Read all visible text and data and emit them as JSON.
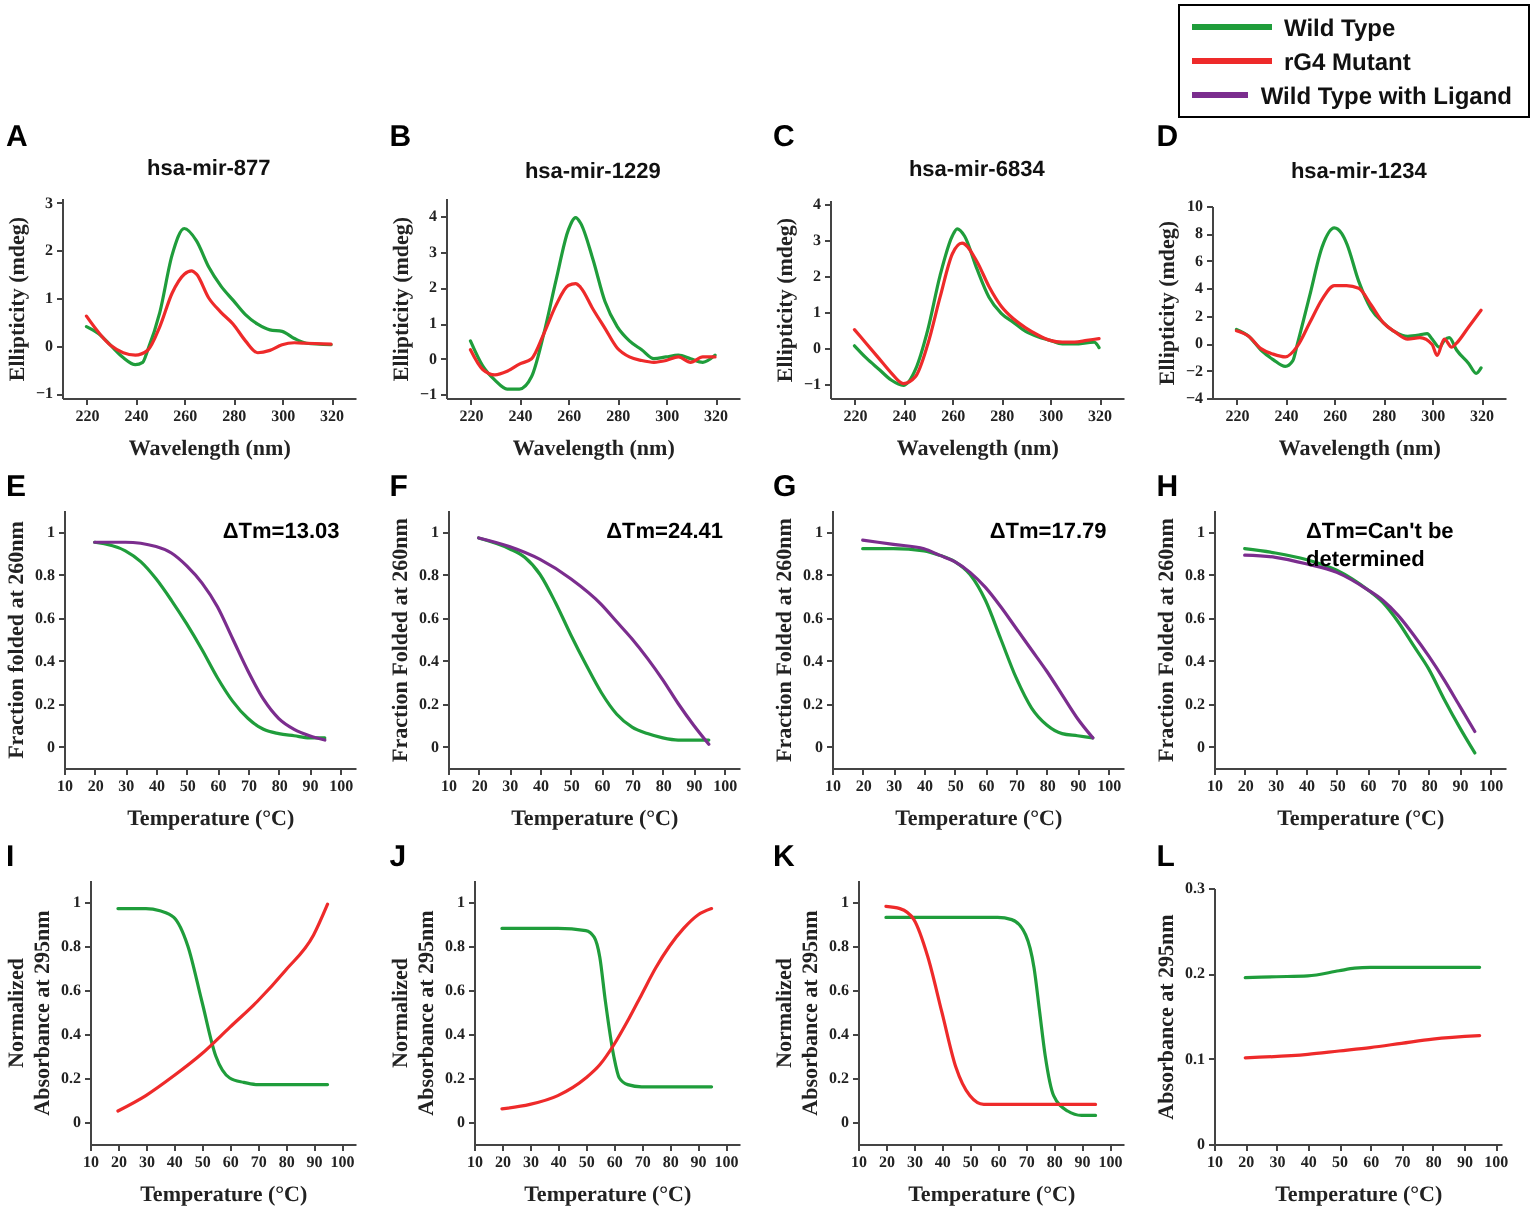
{
  "chart_data": [
    {
      "type": "line",
      "title": "A",
      "subtitle": "hsa-mir-877",
      "xlabel": "Wavelength (nm)",
      "ylabel": "Ellipticity (mdeg)",
      "xlim": [
        210,
        330
      ],
      "xticks": [
        220,
        240,
        260,
        280,
        300,
        320
      ],
      "ylim": [
        -1.1,
        3.1
      ],
      "yticks": [
        -1,
        0,
        1,
        2,
        3
      ],
      "grid": false,
      "legend": "top right",
      "series": [
        {
          "name": "Wild Type",
          "color": "#1f9d3b",
          "x": [
            220,
            225,
            230,
            235,
            240,
            243,
            245,
            250,
            255,
            260,
            265,
            270,
            275,
            280,
            285,
            290,
            295,
            300,
            305,
            310,
            320
          ],
          "values": [
            0.4,
            0.25,
            0.0,
            -0.25,
            -0.4,
            -0.35,
            -0.1,
            0.7,
            1.9,
            2.46,
            2.2,
            1.65,
            1.25,
            0.95,
            0.65,
            0.45,
            0.33,
            0.3,
            0.15,
            0.05,
            0.02
          ]
        },
        {
          "name": "rG4 Mutant",
          "color": "#ee2a2a",
          "x": [
            220,
            230,
            235,
            240,
            245,
            250,
            255,
            260,
            263,
            265,
            270,
            275,
            280,
            285,
            290,
            295,
            300,
            305,
            310,
            320
          ],
          "values": [
            0.62,
            0.0,
            -0.15,
            -0.2,
            -0.1,
            0.4,
            1.1,
            1.5,
            1.57,
            1.5,
            1.0,
            0.7,
            0.45,
            0.1,
            -0.15,
            -0.1,
            0.02,
            0.06,
            0.05,
            0.03
          ]
        }
      ]
    },
    {
      "type": "line",
      "title": "B",
      "subtitle": "hsa-mir-1229",
      "xlabel": "Wavelength (nm)",
      "ylabel": "Ellipticity (mdeg)",
      "xlim": [
        210,
        330
      ],
      "xticks": [
        220,
        240,
        260,
        280,
        300,
        320
      ],
      "ylim": [
        -1.1,
        4.5
      ],
      "yticks": [
        -1,
        0,
        1,
        2,
        3,
        4
      ],
      "grid": false,
      "legend": "top right",
      "series": [
        {
          "name": "Wild Type",
          "color": "#1f9d3b",
          "x": [
            220,
            225,
            230,
            235,
            240,
            245,
            250,
            255,
            260,
            263,
            265,
            270,
            275,
            280,
            285,
            290,
            295,
            300,
            305,
            310,
            315,
            320
          ],
          "values": [
            0.5,
            -0.2,
            -0.6,
            -0.85,
            -0.85,
            -0.5,
            0.7,
            2.2,
            3.6,
            3.95,
            3.8,
            2.8,
            1.6,
            0.9,
            0.5,
            0.25,
            0.0,
            0.05,
            0.1,
            0.0,
            -0.1,
            0.1
          ]
        },
        {
          "name": "rG4 Mutant",
          "color": "#ee2a2a",
          "x": [
            220,
            225,
            230,
            235,
            240,
            245,
            250,
            255,
            260,
            263,
            265,
            270,
            275,
            280,
            285,
            290,
            295,
            300,
            305,
            310,
            315,
            320
          ],
          "values": [
            0.25,
            -0.3,
            -0.45,
            -0.35,
            -0.15,
            0.0,
            0.7,
            1.5,
            2.05,
            2.1,
            2.0,
            1.4,
            0.85,
            0.3,
            0.05,
            -0.05,
            -0.1,
            -0.05,
            0.05,
            -0.1,
            0.05,
            0.05
          ]
        }
      ]
    },
    {
      "type": "line",
      "title": "C",
      "subtitle": "hsa-mir-6834",
      "xlabel": "Wavelength (nm)",
      "ylabel": "Ellipticity (mdeg)",
      "xlim": [
        210,
        330
      ],
      "xticks": [
        220,
        240,
        260,
        280,
        300,
        320
      ],
      "ylim": [
        -1.4,
        4.1
      ],
      "yticks": [
        -1,
        0,
        1,
        2,
        3,
        4
      ],
      "grid": false,
      "legend": "top right",
      "series": [
        {
          "name": "Wild Type",
          "color": "#1f9d3b",
          "x": [
            220,
            225,
            230,
            235,
            240,
            245,
            250,
            255,
            260,
            262,
            265,
            270,
            275,
            280,
            285,
            290,
            295,
            300,
            305,
            310,
            318,
            320
          ],
          "values": [
            0.05,
            -0.3,
            -0.6,
            -0.9,
            -1.05,
            -0.6,
            0.5,
            2.0,
            3.1,
            3.3,
            3.1,
            2.2,
            1.4,
            0.95,
            0.7,
            0.45,
            0.3,
            0.2,
            0.1,
            0.1,
            0.15,
            0.0
          ]
        },
        {
          "name": "rG4 Mutant",
          "color": "#ee2a2a",
          "x": [
            220,
            225,
            230,
            235,
            240,
            245,
            250,
            255,
            260,
            264,
            270,
            275,
            280,
            285,
            290,
            295,
            300,
            305,
            310,
            315,
            320
          ],
          "values": [
            0.5,
            0.1,
            -0.3,
            -0.7,
            -1.0,
            -0.8,
            0.1,
            1.4,
            2.6,
            2.9,
            2.4,
            1.7,
            1.15,
            0.8,
            0.55,
            0.35,
            0.2,
            0.15,
            0.15,
            0.2,
            0.25
          ]
        }
      ]
    },
    {
      "type": "line",
      "title": "D",
      "subtitle": "hsa-mir-1234",
      "xlabel": "Wavelength (nm)",
      "ylabel": "Ellipticity (mdeg)",
      "xlim": [
        210,
        330
      ],
      "xticks": [
        220,
        240,
        260,
        280,
        300,
        320
      ],
      "ylim": [
        -4,
        10
      ],
      "yticks": [
        -4,
        -2,
        0,
        2,
        4,
        6,
        8,
        10
      ],
      "grid": false,
      "legend": "top right",
      "series": [
        {
          "name": "Wild Type",
          "color": "#1f9d3b",
          "x": [
            220,
            225,
            230,
            235,
            240,
            243,
            245,
            250,
            255,
            260,
            263,
            265,
            270,
            275,
            280,
            285,
            290,
            295,
            298,
            300,
            303,
            305,
            307,
            310,
            315,
            318,
            320
          ],
          "values": [
            1.0,
            0.5,
            -0.5,
            -1.2,
            -1.7,
            -1.3,
            0.0,
            3.5,
            7.0,
            8.4,
            8.0,
            7.3,
            4.5,
            2.5,
            1.5,
            0.8,
            0.5,
            0.6,
            0.7,
            0.3,
            -0.3,
            0.2,
            0.4,
            -0.5,
            -1.5,
            -2.2,
            -1.8
          ]
        },
        {
          "name": "rG4 Mutant",
          "color": "#ee2a2a",
          "x": [
            220,
            225,
            230,
            235,
            240,
            245,
            250,
            255,
            260,
            265,
            270,
            275,
            280,
            285,
            290,
            295,
            300,
            302,
            305,
            308,
            310,
            315,
            320
          ],
          "values": [
            0.9,
            0.5,
            -0.4,
            -0.8,
            -1.0,
            -0.2,
            1.5,
            3.2,
            4.2,
            4.2,
            4.0,
            2.8,
            1.5,
            0.8,
            0.3,
            0.4,
            -0.1,
            -0.9,
            0.3,
            -0.3,
            0.0,
            1.2,
            2.4
          ]
        }
      ]
    },
    {
      "type": "line",
      "title": "E",
      "xlabel": "Temperature (°C)",
      "ylabel": "Fraction folded at 260nm",
      "xlim": [
        10,
        105
      ],
      "xticks": [
        10,
        20,
        30,
        40,
        50,
        60,
        70,
        80,
        90,
        100
      ],
      "ylim": [
        -0.1,
        1.1
      ],
      "yticks": [
        0,
        0.2,
        0.4,
        0.6,
        0.8,
        1
      ],
      "grid": false,
      "legend": "top right",
      "annotations": [
        "ΔTm=13.03"
      ],
      "series": [
        {
          "name": "Wild Type",
          "color": "#1f9d3b",
          "x": [
            20,
            30,
            35,
            40,
            45,
            50,
            55,
            60,
            65,
            70,
            75,
            80,
            85,
            90,
            95
          ],
          "values": [
            0.95,
            0.91,
            0.86,
            0.78,
            0.68,
            0.57,
            0.45,
            0.32,
            0.21,
            0.13,
            0.08,
            0.06,
            0.05,
            0.04,
            0.04
          ]
        },
        {
          "name": "Wild Type with Ligand",
          "color": "#7b2d8e",
          "x": [
            20,
            30,
            40,
            45,
            50,
            55,
            60,
            65,
            70,
            75,
            80,
            85,
            90,
            95
          ],
          "values": [
            0.95,
            0.95,
            0.93,
            0.9,
            0.84,
            0.76,
            0.65,
            0.5,
            0.35,
            0.22,
            0.13,
            0.08,
            0.05,
            0.03
          ]
        }
      ]
    },
    {
      "type": "line",
      "title": "F",
      "xlabel": "Temperature (°C)",
      "ylabel": "Fraction Folded at 260nm",
      "xlim": [
        10,
        105
      ],
      "xticks": [
        10,
        20,
        30,
        40,
        50,
        60,
        70,
        80,
        90,
        100
      ],
      "ylim": [
        -0.1,
        1.1
      ],
      "yticks": [
        0,
        0.2,
        0.4,
        0.6,
        0.8,
        1
      ],
      "grid": false,
      "legend": "top right",
      "annotations": [
        "ΔTm=24.41"
      ],
      "series": [
        {
          "name": "Wild Type",
          "color": "#1f9d3b",
          "x": [
            20,
            30,
            35,
            40,
            45,
            50,
            55,
            60,
            65,
            70,
            75,
            80,
            85,
            90,
            95
          ],
          "values": [
            0.97,
            0.92,
            0.88,
            0.8,
            0.67,
            0.52,
            0.38,
            0.25,
            0.15,
            0.09,
            0.06,
            0.04,
            0.03,
            0.03,
            0.03
          ]
        },
        {
          "name": "Wild Type with Ligand",
          "color": "#7b2d8e",
          "x": [
            20,
            30,
            40,
            50,
            60,
            65,
            70,
            75,
            80,
            85,
            90,
            95
          ],
          "values": [
            0.97,
            0.93,
            0.87,
            0.78,
            0.66,
            0.58,
            0.5,
            0.41,
            0.31,
            0.2,
            0.1,
            0.01
          ]
        }
      ]
    },
    {
      "type": "line",
      "title": "G",
      "xlabel": "Temperature (°C)",
      "ylabel": "Fraction Folded at 260nm",
      "xlim": [
        10,
        105
      ],
      "xticks": [
        10,
        20,
        30,
        40,
        50,
        60,
        70,
        80,
        90,
        100
      ],
      "ylim": [
        -0.1,
        1.1
      ],
      "yticks": [
        0,
        0.2,
        0.4,
        0.6,
        0.8,
        1
      ],
      "grid": false,
      "legend": "top right",
      "annotations": [
        "ΔTm=17.79"
      ],
      "series": [
        {
          "name": "Wild Type",
          "color": "#1f9d3b",
          "x": [
            20,
            30,
            40,
            45,
            50,
            55,
            60,
            65,
            70,
            75,
            80,
            85,
            90,
            95
          ],
          "values": [
            0.92,
            0.92,
            0.91,
            0.89,
            0.86,
            0.8,
            0.68,
            0.5,
            0.32,
            0.18,
            0.1,
            0.06,
            0.05,
            0.04
          ]
        },
        {
          "name": "Wild Type with Ligand",
          "color": "#7b2d8e",
          "x": [
            20,
            30,
            40,
            45,
            50,
            55,
            60,
            65,
            70,
            75,
            80,
            85,
            90,
            95
          ],
          "values": [
            0.96,
            0.94,
            0.92,
            0.89,
            0.86,
            0.81,
            0.74,
            0.65,
            0.55,
            0.45,
            0.35,
            0.24,
            0.13,
            0.04
          ]
        }
      ]
    },
    {
      "type": "line",
      "title": "H",
      "xlabel": "Temperature (°C)",
      "ylabel": "Fraction Folded at 260nm",
      "xlim": [
        10,
        105
      ],
      "xticks": [
        10,
        20,
        30,
        40,
        50,
        60,
        70,
        80,
        90,
        100
      ],
      "ylim": [
        -0.1,
        1.1
      ],
      "yticks": [
        0,
        0.2,
        0.4,
        0.6,
        0.8,
        1
      ],
      "grid": false,
      "legend": "top right",
      "annotations": [
        "ΔTm=Can't be determined"
      ],
      "series": [
        {
          "name": "Wild Type",
          "color": "#1f9d3b",
          "x": [
            20,
            30,
            40,
            50,
            55,
            60,
            65,
            70,
            75,
            80,
            85,
            90,
            95
          ],
          "values": [
            0.92,
            0.9,
            0.87,
            0.82,
            0.78,
            0.73,
            0.67,
            0.58,
            0.47,
            0.36,
            0.22,
            0.09,
            -0.03
          ]
        },
        {
          "name": "Wild Type with Ligand",
          "color": "#7b2d8e",
          "x": [
            20,
            30,
            40,
            50,
            60,
            65,
            70,
            75,
            80,
            85,
            90,
            95
          ],
          "values": [
            0.89,
            0.88,
            0.85,
            0.81,
            0.73,
            0.68,
            0.61,
            0.52,
            0.42,
            0.31,
            0.19,
            0.07
          ]
        }
      ]
    },
    {
      "type": "line",
      "title": "I",
      "xlabel": "Temperature (°C)",
      "ylabel": "Normalized Absorbance at 295nm",
      "xlim": [
        10,
        105
      ],
      "xticks": [
        10,
        20,
        30,
        40,
        50,
        60,
        70,
        80,
        90,
        100
      ],
      "ylim": [
        -0.1,
        1.1
      ],
      "yticks": [
        0,
        0.2,
        0.4,
        0.6,
        0.8,
        1
      ],
      "grid": false,
      "legend": "top right",
      "series": [
        {
          "name": "Wild Type",
          "color": "#1f9d3b",
          "x": [
            20,
            30,
            35,
            40,
            45,
            50,
            55,
            60,
            65,
            70,
            80,
            95
          ],
          "values": [
            0.97,
            0.97,
            0.96,
            0.93,
            0.8,
            0.55,
            0.3,
            0.2,
            0.18,
            0.17,
            0.17,
            0.17
          ]
        },
        {
          "name": "rG4 Mutant",
          "color": "#ee2a2a",
          "x": [
            20,
            30,
            40,
            50,
            60,
            70,
            80,
            90,
            95
          ],
          "values": [
            0.05,
            0.12,
            0.21,
            0.31,
            0.43,
            0.55,
            0.69,
            0.85,
            0.99
          ]
        }
      ]
    },
    {
      "type": "line",
      "title": "J",
      "xlabel": "Temperature (°C)",
      "ylabel": "Normalized Absorbance at 295nm",
      "xlim": [
        10,
        105
      ],
      "xticks": [
        10,
        20,
        30,
        40,
        50,
        60,
        70,
        80,
        90,
        100
      ],
      "ylim": [
        -0.1,
        1.1
      ],
      "yticks": [
        0,
        0.2,
        0.4,
        0.6,
        0.8,
        1
      ],
      "grid": false,
      "legend": "top right",
      "series": [
        {
          "name": "Wild Type",
          "color": "#1f9d3b",
          "x": [
            20,
            40,
            50,
            53,
            55,
            57,
            60,
            62,
            65,
            70,
            95
          ],
          "values": [
            0.88,
            0.88,
            0.87,
            0.84,
            0.75,
            0.55,
            0.3,
            0.2,
            0.17,
            0.16,
            0.16
          ]
        },
        {
          "name": "rG4 Mutant",
          "color": "#ee2a2a",
          "x": [
            20,
            30,
            40,
            50,
            55,
            60,
            65,
            70,
            75,
            80,
            85,
            90,
            95
          ],
          "values": [
            0.06,
            0.08,
            0.12,
            0.2,
            0.26,
            0.35,
            0.46,
            0.58,
            0.7,
            0.8,
            0.88,
            0.94,
            0.97
          ]
        }
      ]
    },
    {
      "type": "line",
      "title": "K",
      "xlabel": "Temperature (°C)",
      "ylabel": "Normalized Absorbance at 295nm",
      "xlim": [
        10,
        105
      ],
      "xticks": [
        10,
        20,
        30,
        40,
        50,
        60,
        70,
        80,
        90,
        100
      ],
      "ylim": [
        -0.1,
        1.1
      ],
      "yticks": [
        0,
        0.2,
        0.4,
        0.6,
        0.8,
        1
      ],
      "grid": false,
      "legend": "top right",
      "series": [
        {
          "name": "Wild Type",
          "color": "#1f9d3b",
          "x": [
            20,
            60,
            65,
            70,
            73,
            75,
            77,
            80,
            85,
            90,
            95
          ],
          "values": [
            0.93,
            0.93,
            0.92,
            0.85,
            0.7,
            0.5,
            0.3,
            0.12,
            0.05,
            0.03,
            0.03
          ]
        },
        {
          "name": "rG4 Mutant",
          "color": "#ee2a2a",
          "x": [
            20,
            25,
            30,
            35,
            40,
            45,
            50,
            55,
            60,
            95
          ],
          "values": [
            0.98,
            0.97,
            0.92,
            0.75,
            0.5,
            0.25,
            0.12,
            0.08,
            0.08,
            0.08
          ]
        }
      ]
    },
    {
      "type": "line",
      "title": "L",
      "xlabel": "Temperature (°C)",
      "ylabel": "Absorbance at 295nm",
      "xlim": [
        10,
        102
      ],
      "xticks": [
        10,
        20,
        30,
        40,
        50,
        60,
        70,
        80,
        90,
        100
      ],
      "ylim": [
        0,
        0.3
      ],
      "yticks": [
        0,
        0.1,
        0.2,
        0.3
      ],
      "grid": false,
      "legend": "top right",
      "series": [
        {
          "name": "Wild Type",
          "color": "#1f9d3b",
          "x": [
            20,
            30,
            40,
            50,
            55,
            60,
            70,
            95
          ],
          "values": [
            0.195,
            0.196,
            0.197,
            0.203,
            0.206,
            0.207,
            0.207,
            0.207
          ]
        },
        {
          "name": "rG4 Mutant",
          "color": "#ee2a2a",
          "x": [
            20,
            40,
            50,
            60,
            70,
            80,
            95
          ],
          "values": [
            0.101,
            0.105,
            0.109,
            0.113,
            0.118,
            0.123,
            0.127
          ]
        }
      ]
    }
  ]
}
